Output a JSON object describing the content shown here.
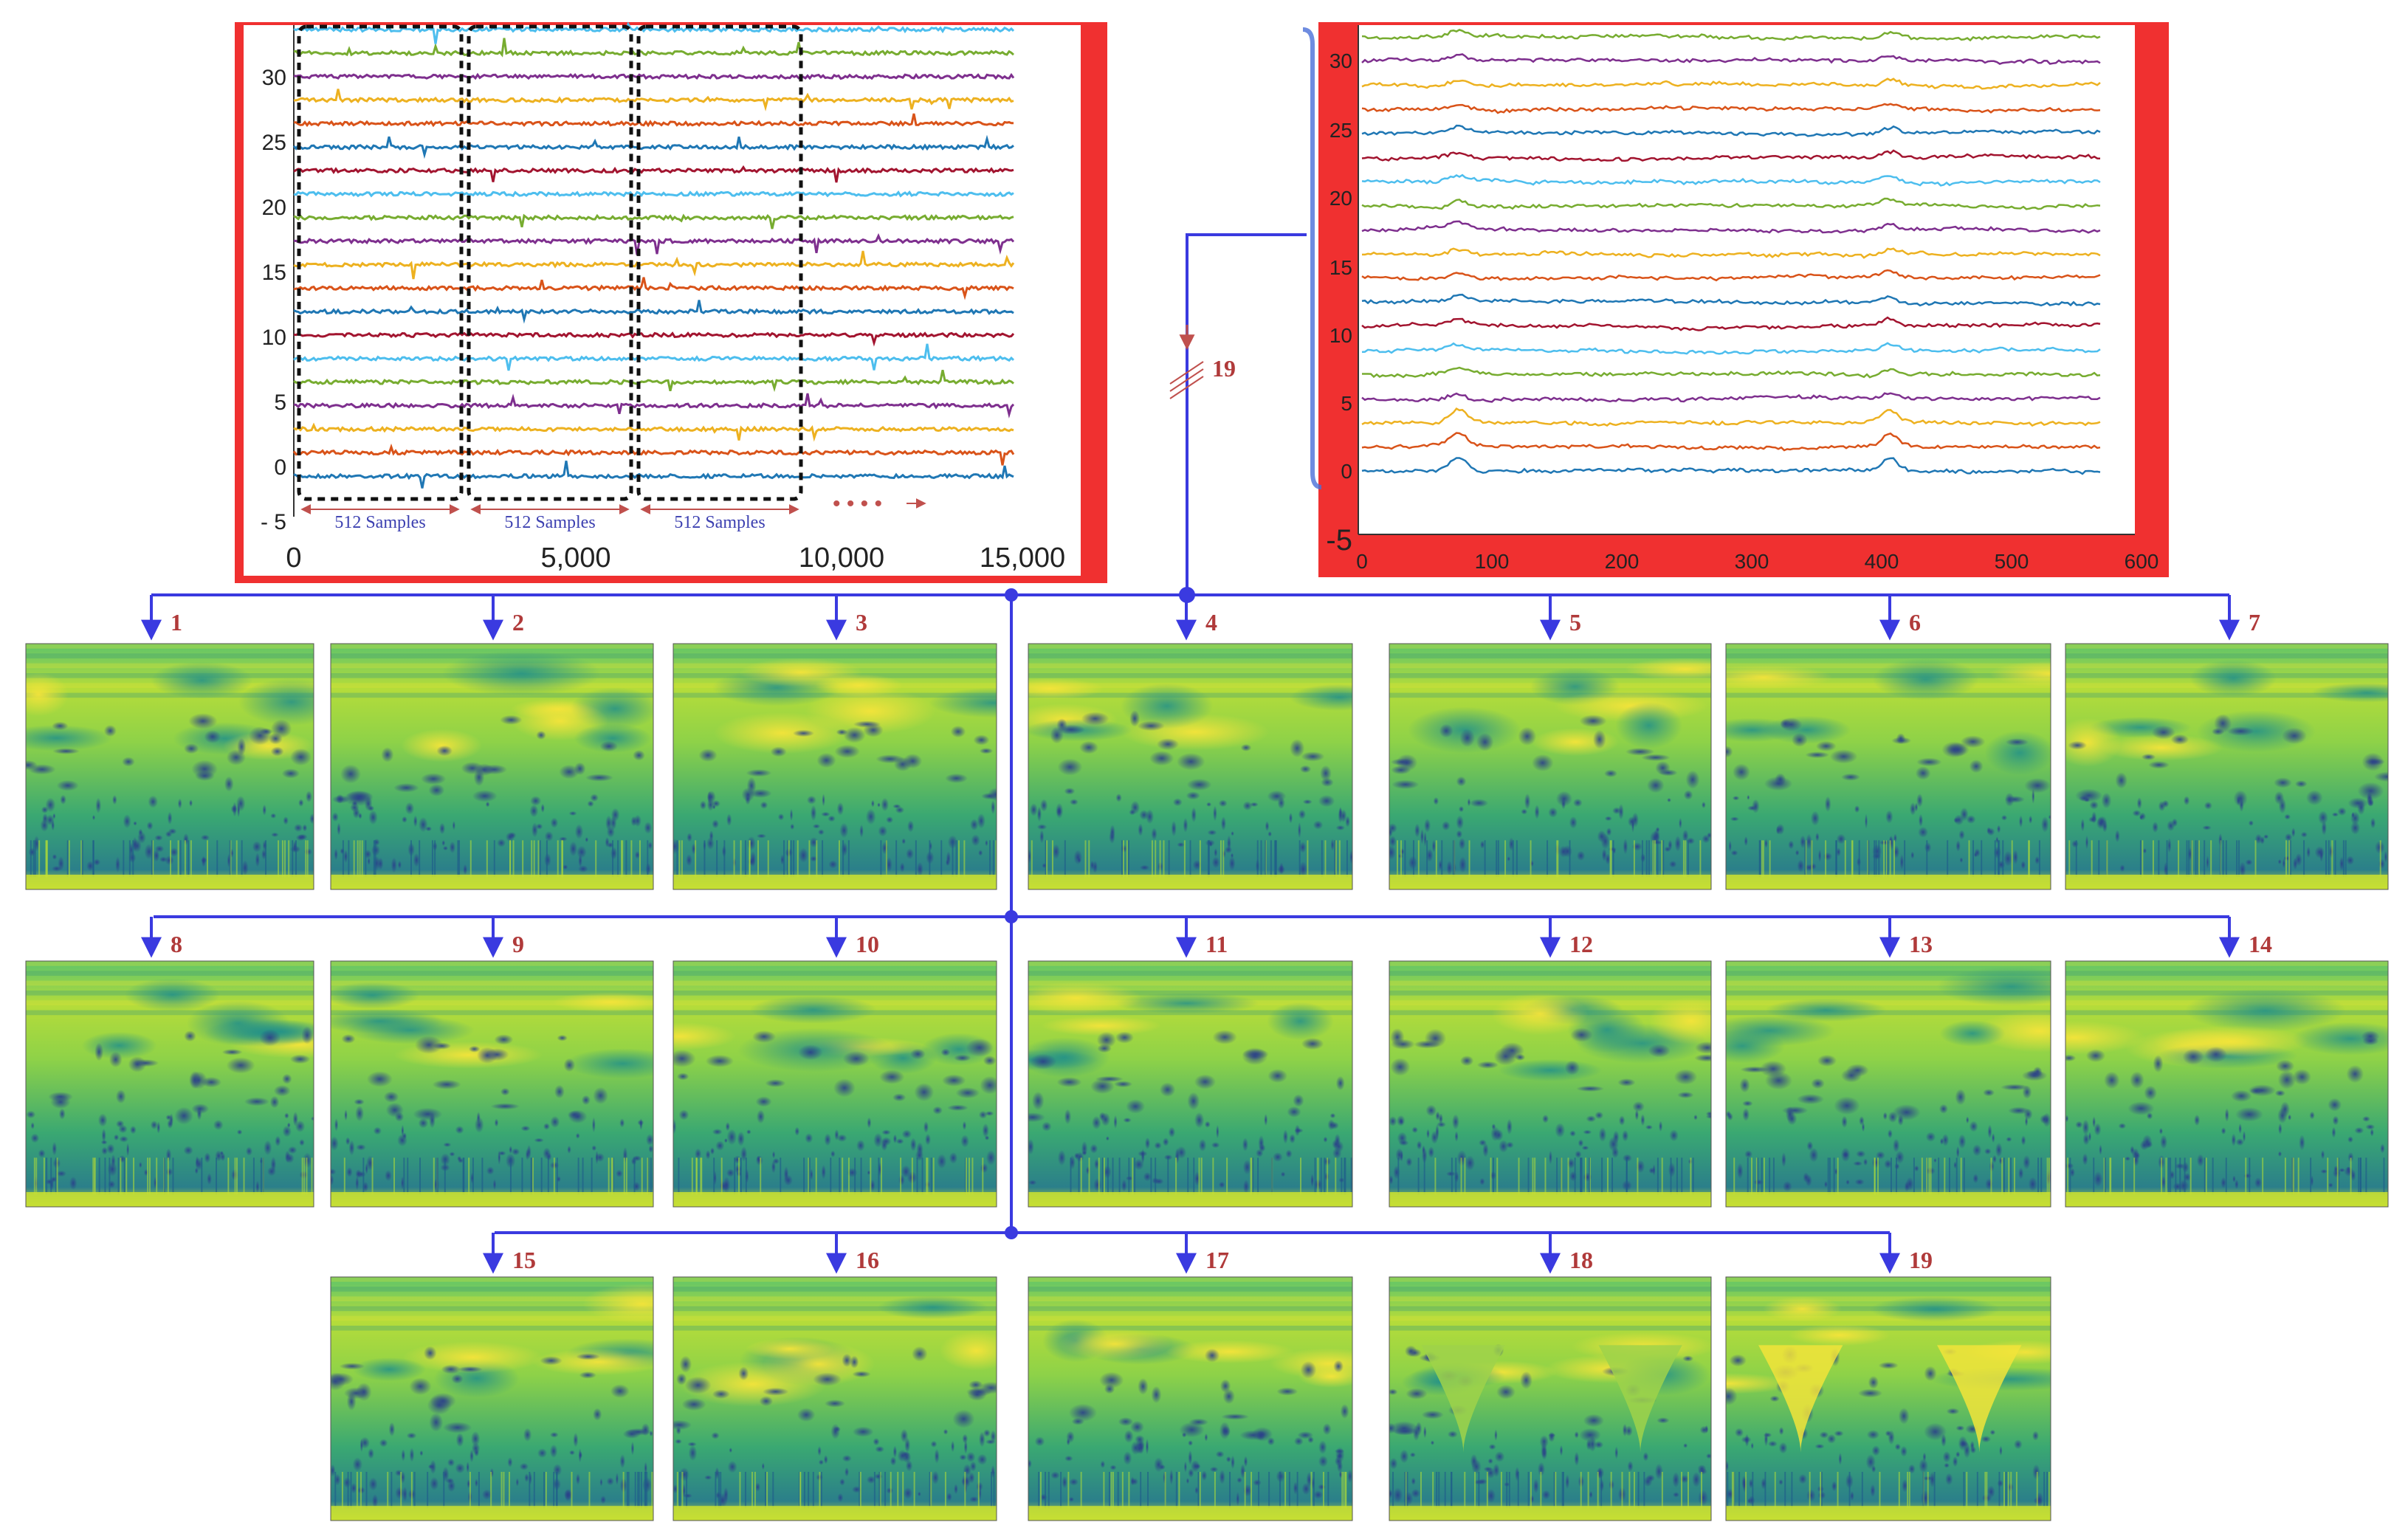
{
  "left_plot": {
    "y_ticks": [
      "30",
      "25",
      "20",
      "15",
      "10",
      "5",
      "0",
      "- 5"
    ],
    "x_ticks": [
      "0",
      "5,000",
      "10,000",
      "15,000"
    ],
    "segment_labels": [
      "512 Samples",
      "512 Samples",
      "512 Samples"
    ],
    "continuation": "• • • •"
  },
  "right_plot": {
    "y_ticks": [
      "30",
      "25",
      "20",
      "15",
      "10",
      "5",
      "0",
      "-5"
    ],
    "x_ticks": [
      "0",
      "100",
      "200",
      "300",
      "400",
      "500",
      "600"
    ]
  },
  "bus_label": "19",
  "scalograms": [
    {
      "label": "1"
    },
    {
      "label": "2"
    },
    {
      "label": "3"
    },
    {
      "label": "4"
    },
    {
      "label": "5"
    },
    {
      "label": "6"
    },
    {
      "label": "7"
    },
    {
      "label": "8"
    },
    {
      "label": "9"
    },
    {
      "label": "10"
    },
    {
      "label": "11"
    },
    {
      "label": "12"
    },
    {
      "label": "13"
    },
    {
      "label": "14"
    },
    {
      "label": "15"
    },
    {
      "label": "16"
    },
    {
      "label": "17"
    },
    {
      "label": "18"
    },
    {
      "label": "19"
    }
  ],
  "colors": {
    "frame_red": "#f03030",
    "connector_blue": "#3a3ae0",
    "number_red": "#b03a3a",
    "trace_colors": [
      "#1f77b4",
      "#d95319",
      "#edb120",
      "#7e2f8e",
      "#77ac30",
      "#4dbeee",
      "#a2142f"
    ]
  }
}
